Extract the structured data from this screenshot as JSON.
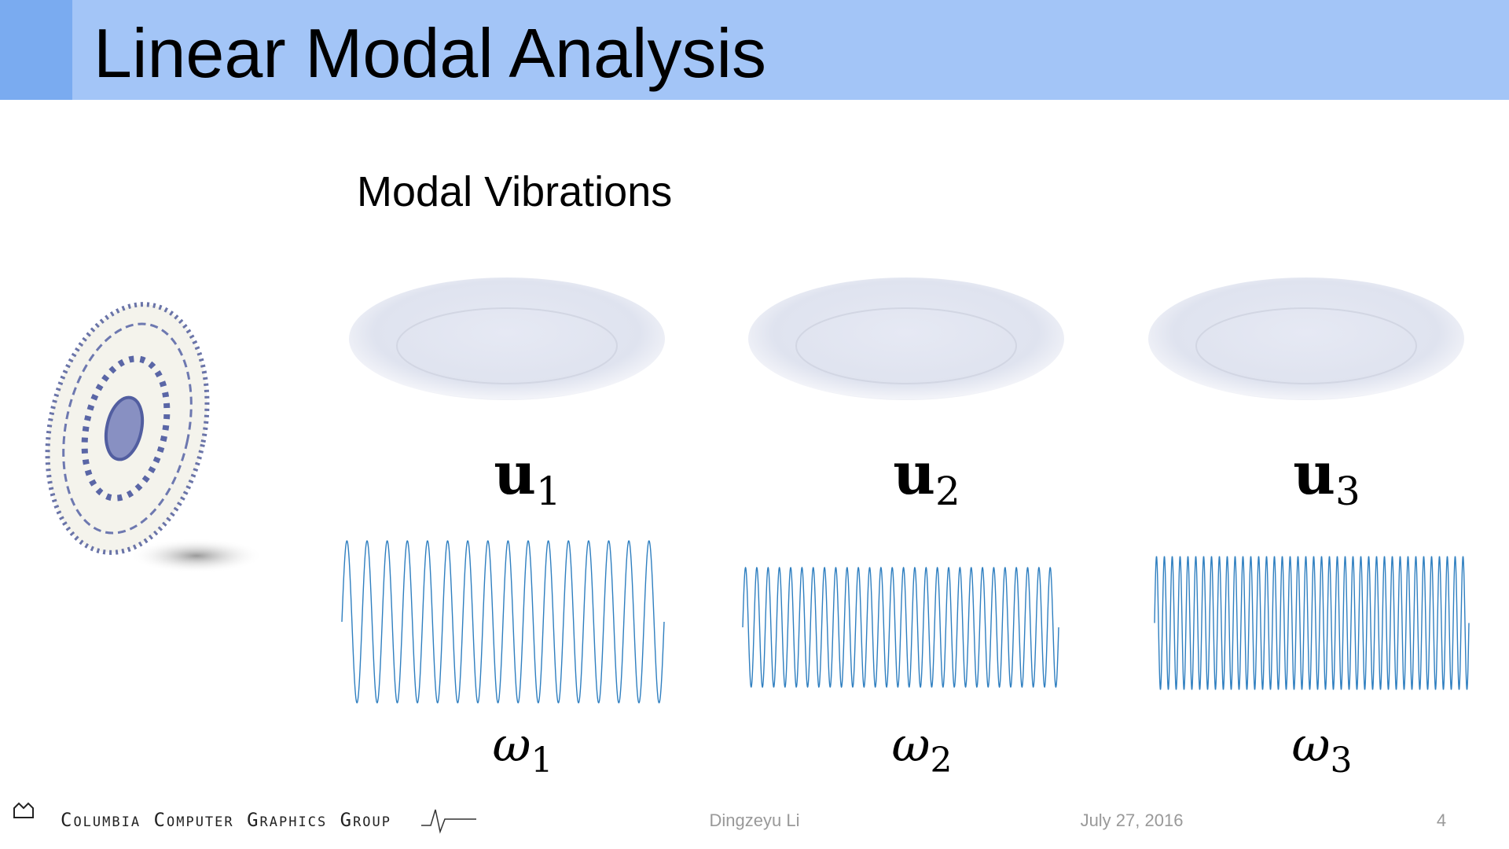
{
  "header": {
    "title": "Linear Modal Analysis"
  },
  "subtitle": "Modal Vibrations",
  "modes": [
    {
      "shape": {
        "symbol": "u",
        "index": "1"
      },
      "frequency": {
        "symbol": "ω",
        "index": "1"
      }
    },
    {
      "shape": {
        "symbol": "u",
        "index": "2"
      },
      "frequency": {
        "symbol": "ω",
        "index": "2"
      }
    },
    {
      "shape": {
        "symbol": "u",
        "index": "3"
      },
      "frequency": {
        "symbol": "ω",
        "index": "3"
      }
    }
  ],
  "footer": {
    "group": "Columbia Computer Graphics Group",
    "author": "Dingzeyu Li",
    "date": "July 27, 2016",
    "page": "4"
  }
}
